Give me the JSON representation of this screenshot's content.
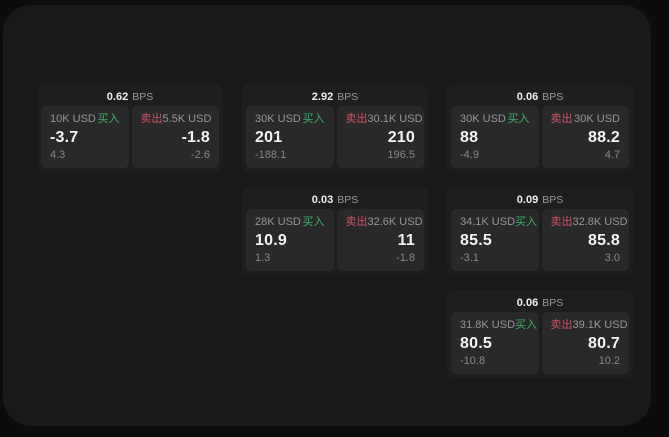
{
  "labels": {
    "unit": "BPS",
    "buy": "买入",
    "sell": "卖出"
  },
  "colors": {
    "buy": "#3db06c",
    "sell": "#cd5168"
  },
  "cards": [
    {
      "bps": "0.62",
      "row": 1,
      "col": 1,
      "buy": {
        "size": "10K USD",
        "value": "-3.7",
        "sub": "4.3"
      },
      "sell": {
        "size": "5.5K USD",
        "value": "-1.8",
        "sub": "-2.6"
      }
    },
    {
      "bps": "2.92",
      "row": 1,
      "col": 2,
      "buy": {
        "size": "30K USD",
        "value": "201",
        "sub": "-188.1"
      },
      "sell": {
        "size": "30.1K USD",
        "value": "210",
        "sub": "196.5"
      }
    },
    {
      "bps": "0.06",
      "row": 1,
      "col": 3,
      "buy": {
        "size": "30K USD",
        "value": "88",
        "sub": "-4.9"
      },
      "sell": {
        "size": "30K USD",
        "value": "88.2",
        "sub": "4.7"
      }
    },
    {
      "bps": "0.03",
      "row": 2,
      "col": 2,
      "buy": {
        "size": "28K USD",
        "value": "10.9",
        "sub": "1.3"
      },
      "sell": {
        "size": "32.6K USD",
        "value": "11",
        "sub": "-1.8"
      }
    },
    {
      "bps": "0.09",
      "row": 2,
      "col": 3,
      "buy": {
        "size": "34.1K USD",
        "value": "85.5",
        "sub": "-3.1"
      },
      "sell": {
        "size": "32.8K USD",
        "value": "85.8",
        "sub": "3.0"
      }
    },
    {
      "bps": "0.06",
      "row": 3,
      "col": 3,
      "buy": {
        "size": "31.8K USD",
        "value": "80.5",
        "sub": "-10.8"
      },
      "sell": {
        "size": "39.1K USD",
        "value": "80.7",
        "sub": "10.2"
      }
    }
  ]
}
